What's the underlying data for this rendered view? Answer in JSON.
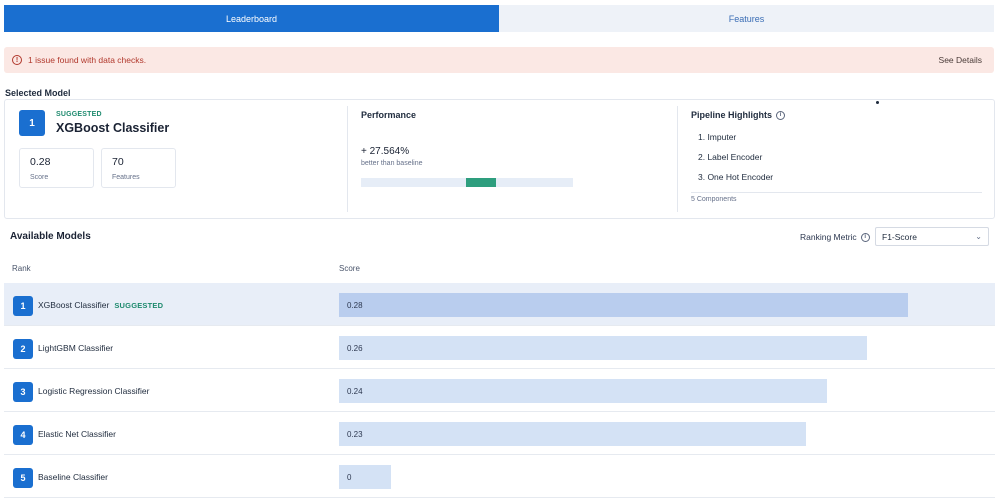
{
  "tabs": [
    {
      "label": "Leaderboard",
      "active": true
    },
    {
      "label": "Features",
      "active": false
    }
  ],
  "alert": {
    "message": "1 issue found with data checks.",
    "action": "See Details"
  },
  "selected_model": {
    "section_title": "Selected Model",
    "rank": "1",
    "tag": "SUGGESTED",
    "name": "XGBoost Classifier",
    "score_value": "0.28",
    "score_label": "Score",
    "features_value": "70",
    "features_label": "Features"
  },
  "performance": {
    "title": "Performance",
    "value": "+ 27.564%",
    "subtitle": "better than baseline"
  },
  "pipeline": {
    "title": "Pipeline Highlights",
    "items": [
      "1. Imputer",
      "2. Label Encoder",
      "3. One Hot Encoder"
    ],
    "count": "5 Components"
  },
  "available": {
    "title": "Available Models",
    "metric_label": "Ranking Metric",
    "metric_value": "F1-Score",
    "col_rank": "Rank",
    "col_score": "Score",
    "max_score": 0.28,
    "rows": [
      {
        "rank": "1",
        "name": "XGBoost Classifier",
        "tag": "SUGGESTED",
        "score": 0.28,
        "score_text": "0.28"
      },
      {
        "rank": "2",
        "name": "LightGBM Classifier",
        "tag": "",
        "score": 0.26,
        "score_text": "0.26"
      },
      {
        "rank": "3",
        "name": "Logistic Regression Classifier",
        "tag": "",
        "score": 0.24,
        "score_text": "0.24"
      },
      {
        "rank": "4",
        "name": "Elastic Net Classifier",
        "tag": "",
        "score": 0.23,
        "score_text": "0.23"
      },
      {
        "rank": "5",
        "name": "Baseline Classifier",
        "tag": "",
        "score": 0,
        "score_text": "0"
      }
    ]
  },
  "colors": {
    "accent": "#1a6fd0",
    "suggested": "#1e8a6e",
    "alert_bg": "#fbe8e4",
    "alert_text": "#b1382c"
  }
}
